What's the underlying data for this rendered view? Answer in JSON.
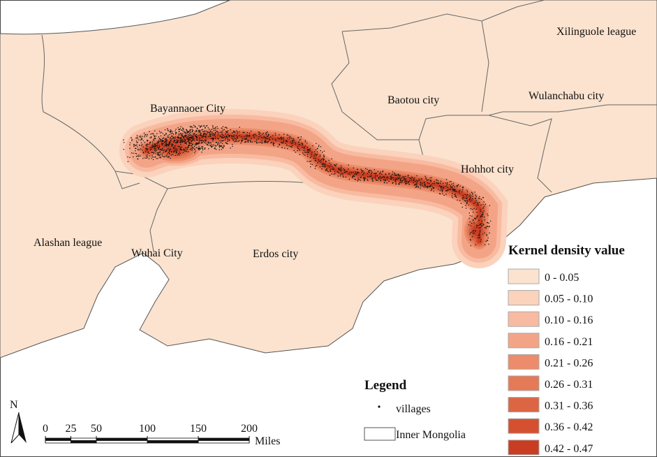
{
  "map": {
    "regions": [
      {
        "label": "Xilinguole league"
      },
      {
        "label": "Wulanchabu city"
      },
      {
        "label": "Baotou city"
      },
      {
        "label": "Bayannaoer City"
      },
      {
        "label": "Hohhot city"
      },
      {
        "label": "Alashan league"
      },
      {
        "label": "Wuhai City"
      },
      {
        "label": "Erdos city"
      }
    ],
    "density_legend": {
      "title": "Kernel density value",
      "classes": [
        {
          "label": "0 - 0.05",
          "color": "#fbe3cf"
        },
        {
          "label": "0.05 - 0.10",
          "color": "#fbd2bc"
        },
        {
          "label": "0.10 - 0.16",
          "color": "#f8bba1"
        },
        {
          "label": "0.16 - 0.21",
          "color": "#f3a487"
        },
        {
          "label": "0.21 - 0.26",
          "color": "#ec8c6a"
        },
        {
          "label": "0.26 - 0.31",
          "color": "#e47a57"
        },
        {
          "label": "0.31 - 0.36",
          "color": "#dc6543"
        },
        {
          "label": "0.36 - 0.42",
          "color": "#d45030"
        },
        {
          "label": "0.42 - 0.47",
          "color": "#c93e22"
        }
      ]
    },
    "legend": {
      "title": "Legend",
      "items": [
        "villages",
        "Inner Mongolia"
      ]
    },
    "scale_bar": {
      "ticks": [
        0,
        25,
        50,
        100,
        150,
        200
      ],
      "unit": "Miles"
    },
    "north_arrow": "N"
  }
}
